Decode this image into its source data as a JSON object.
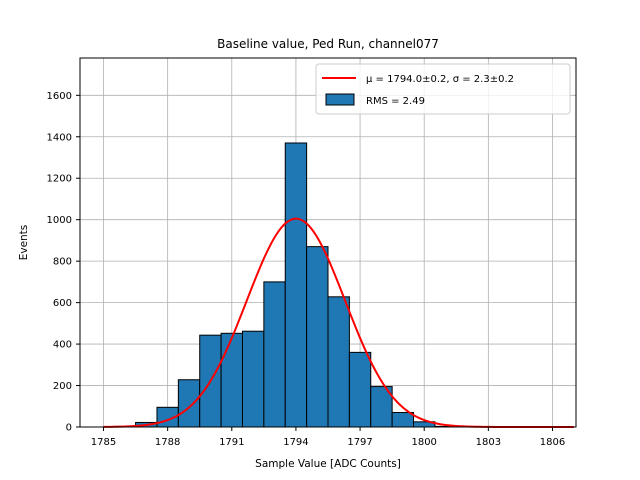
{
  "chart_data": {
    "type": "bar",
    "title": "Baseline value, Ped Run, channel077",
    "xlabel": "Sample Value [ADC Counts]",
    "ylabel": "Events",
    "xlim": [
      1783.9,
      1807.1
    ],
    "ylim": [
      0,
      1780
    ],
    "xticks": [
      1785,
      1788,
      1791,
      1794,
      1797,
      1800,
      1803,
      1806
    ],
    "yticks": [
      0,
      200,
      400,
      600,
      800,
      1000,
      1200,
      1400,
      1600
    ],
    "grid": true,
    "legend_position": "top-right",
    "bar_color": "#1f77b4",
    "fit_color": "#ff0000",
    "histogram": {
      "name": "RMS = 2.49",
      "bins": [
        {
          "x0": 1785.5,
          "x1": 1786.5,
          "count": 3
        },
        {
          "x0": 1786.5,
          "x1": 1787.5,
          "count": 22
        },
        {
          "x0": 1787.5,
          "x1": 1788.5,
          "count": 95
        },
        {
          "x0": 1788.5,
          "x1": 1789.5,
          "count": 228
        },
        {
          "x0": 1789.5,
          "x1": 1790.5,
          "count": 443
        },
        {
          "x0": 1790.5,
          "x1": 1791.5,
          "count": 452
        },
        {
          "x0": 1791.5,
          "x1": 1792.5,
          "count": 462
        },
        {
          "x0": 1792.5,
          "x1": 1793.5,
          "count": 700
        },
        {
          "x0": 1793.5,
          "x1": 1794.5,
          "count": 1370
        },
        {
          "x0": 1794.5,
          "x1": 1795.5,
          "count": 870
        },
        {
          "x0": 1795.5,
          "x1": 1796.5,
          "count": 628
        },
        {
          "x0": 1796.5,
          "x1": 1797.5,
          "count": 360
        },
        {
          "x0": 1797.5,
          "x1": 1798.5,
          "count": 195
        },
        {
          "x0": 1798.5,
          "x1": 1799.5,
          "count": 70
        },
        {
          "x0": 1799.5,
          "x1": 1800.5,
          "count": 25
        },
        {
          "x0": 1800.5,
          "x1": 1801.5,
          "count": 3
        }
      ]
    },
    "fit": {
      "name": "μ = 1794.0±0.2, σ = 2.3±0.2",
      "function": "gaussian",
      "mu": 1794.0,
      "sigma": 2.3,
      "amplitude": 1005,
      "x_range": [
        1785,
        1807
      ]
    }
  }
}
